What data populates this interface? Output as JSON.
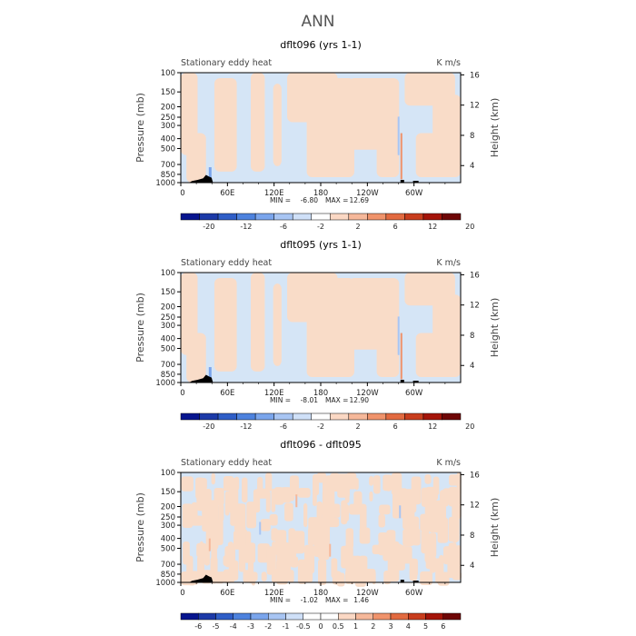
{
  "figure_title": "ANN",
  "colors": {
    "pos": "#f9dcc8",
    "neg": "#d5e5f6",
    "topo": "#000000",
    "palette": [
      "#07158f",
      "#1c3aa8",
      "#2f5ec7",
      "#4d82de",
      "#7aa5ec",
      "#a8c5f3",
      "#cfe0f8",
      "#ffffff",
      "#fbd8c4",
      "#f6b89a",
      "#f0936b",
      "#e26a40",
      "#c83d1d",
      "#a41409",
      "#6e0606"
    ],
    "diff_palette": [
      "#07158f",
      "#1c3aa8",
      "#2f5ec7",
      "#4d82de",
      "#7aa5ec",
      "#a8c5f3",
      "#cfe0f8",
      "#ffffff",
      "#ffffff",
      "#fbd8c4",
      "#f6b89a",
      "#f0936b",
      "#e26a40",
      "#c83d1d",
      "#a41409",
      "#6e0606"
    ]
  },
  "chart_data": [
    {
      "type": "heatmap",
      "title": "dflt096 (yrs 1-1)",
      "left_label": "Stationary eddy heat",
      "right_label": "K m/s",
      "ylabel": "Pressure (mb)",
      "ylabel_right": "Height (km)",
      "x_ticks": [
        "0",
        "60E",
        "120E",
        "180",
        "120W",
        "60W"
      ],
      "y_ticks": [
        "100",
        "150",
        "200",
        "250",
        "300",
        "400",
        "500",
        "700",
        "850",
        "1000"
      ],
      "y_right_ticks": [
        "16",
        "12",
        "8",
        "4"
      ],
      "min_label": "MIN =",
      "min_value": "-6.80",
      "max_label": "MAX =",
      "max_value": "12.69",
      "colorbar_labels": [
        "-20",
        "-12",
        "-6",
        "-2",
        "2",
        "6",
        "12",
        "20"
      ],
      "dominant": "mixed"
    },
    {
      "type": "heatmap",
      "title": "dflt095 (yrs 1-1)",
      "left_label": "Stationary eddy heat",
      "right_label": "K m/s",
      "ylabel": "Pressure (mb)",
      "ylabel_right": "Height (km)",
      "x_ticks": [
        "0",
        "60E",
        "120E",
        "180",
        "120W",
        "60W"
      ],
      "y_ticks": [
        "100",
        "150",
        "200",
        "250",
        "300",
        "400",
        "500",
        "700",
        "850",
        "1000"
      ],
      "y_right_ticks": [
        "16",
        "12",
        "8",
        "4"
      ],
      "min_label": "MIN =",
      "min_value": "-8.01",
      "max_label": "MAX =",
      "max_value": "12.90",
      "colorbar_labels": [
        "-20",
        "-12",
        "-6",
        "-2",
        "2",
        "6",
        "12",
        "20"
      ],
      "dominant": "mixed"
    },
    {
      "type": "heatmap",
      "title": "dflt096 - dflt095",
      "left_label": "Stationary eddy heat",
      "right_label": "K m/s",
      "ylabel": "Pressure (mb)",
      "ylabel_right": "Height (km)",
      "x_ticks": [
        "0",
        "60E",
        "120E",
        "180",
        "120W",
        "60W"
      ],
      "y_ticks": [
        "100",
        "150",
        "200",
        "250",
        "300",
        "400",
        "500",
        "700",
        "850",
        "1000"
      ],
      "y_right_ticks": [
        "16",
        "12",
        "8",
        "4"
      ],
      "min_label": "MIN =",
      "min_value": "-1.02",
      "max_label": "MAX =",
      "max_value": "1.46",
      "colorbar_labels": [
        "-6",
        "-5",
        "-4",
        "-3",
        "-2",
        "-1",
        "-0.5",
        "0",
        "0.5",
        "1",
        "2",
        "3",
        "4",
        "5",
        "6"
      ],
      "dominant": "noisy"
    }
  ]
}
